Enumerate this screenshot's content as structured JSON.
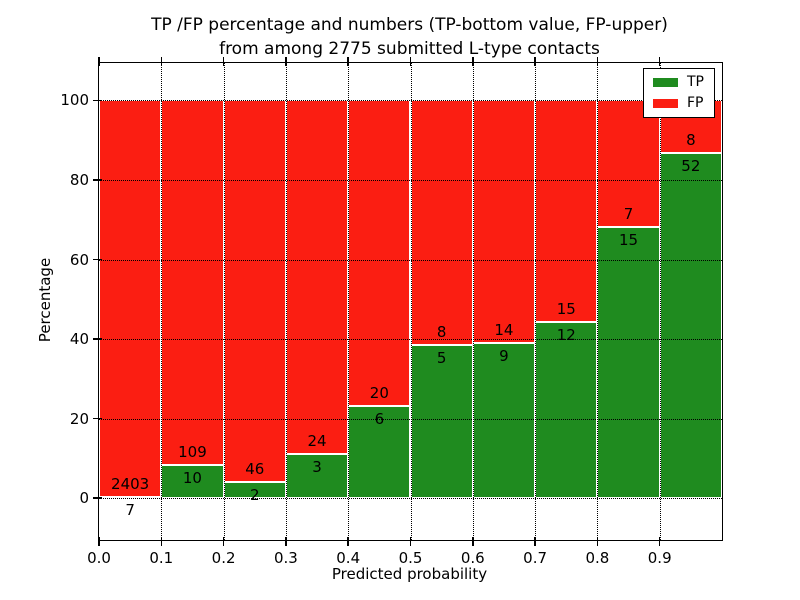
{
  "figure": {
    "title_line1": "TP /FP percentage and numbers (TP-bottom value, FP-upper)",
    "title_line2": "from among 2775 submitted L-type contacts",
    "background": "#ffffff"
  },
  "chart_data": {
    "type": "bar",
    "stacked": true,
    "title": "TP /FP percentage and numbers (TP-bottom value, FP-upper) from among 2775 submitted L-type contacts",
    "xlabel": "Predicted probability",
    "ylabel": "Percentage",
    "total_contacts": 2775,
    "xlim": [
      0.0,
      1.0
    ],
    "ylim": [
      -10.5,
      109.4
    ],
    "grid": "dotted",
    "x_tick_values": [
      0.0,
      0.1,
      0.2,
      0.3,
      0.4,
      0.5,
      0.6,
      0.7,
      0.8,
      0.9
    ],
    "x_tick_labels": [
      "0.0",
      "0.1",
      "0.2",
      "0.3",
      "0.4",
      "0.5",
      "0.6",
      "0.7",
      "0.8",
      "0.9"
    ],
    "y_tick_values": [
      0,
      20,
      40,
      60,
      80,
      100
    ],
    "y_tick_labels": [
      "0",
      "20",
      "40",
      "60",
      "80",
      "100"
    ],
    "legend": {
      "position": "upper right",
      "entries": [
        {
          "label": "TP",
          "color": "#1f8b1f"
        },
        {
          "label": "FP",
          "color": "#fb1e12"
        }
      ]
    },
    "series": [
      {
        "name": "TP",
        "color": "#1f8b1f",
        "counts": [
          7,
          10,
          2,
          3,
          6,
          5,
          9,
          12,
          15,
          52
        ]
      },
      {
        "name": "FP",
        "color": "#fb1e12",
        "counts": [
          2403,
          109,
          46,
          24,
          20,
          8,
          14,
          15,
          7,
          8
        ]
      }
    ],
    "bins": [
      {
        "x_start": 0.0,
        "x_end": 0.1,
        "tp": 7,
        "fp": 2403,
        "tp_pct": 0.3,
        "fp_pct": 99.7
      },
      {
        "x_start": 0.1,
        "x_end": 0.2,
        "tp": 10,
        "fp": 109,
        "tp_pct": 8.4,
        "fp_pct": 91.6
      },
      {
        "x_start": 0.2,
        "x_end": 0.3,
        "tp": 2,
        "fp": 46,
        "tp_pct": 4.2,
        "fp_pct": 95.8
      },
      {
        "x_start": 0.3,
        "x_end": 0.4,
        "tp": 3,
        "fp": 24,
        "tp_pct": 11.1,
        "fp_pct": 88.9
      },
      {
        "x_start": 0.4,
        "x_end": 0.5,
        "tp": 6,
        "fp": 20,
        "tp_pct": 23.1,
        "fp_pct": 76.9
      },
      {
        "x_start": 0.5,
        "x_end": 0.6,
        "tp": 5,
        "fp": 8,
        "tp_pct": 38.5,
        "fp_pct": 61.5
      },
      {
        "x_start": 0.6,
        "x_end": 0.7,
        "tp": 9,
        "fp": 14,
        "tp_pct": 39.1,
        "fp_pct": 60.9
      },
      {
        "x_start": 0.7,
        "x_end": 0.8,
        "tp": 12,
        "fp": 15,
        "tp_pct": 44.4,
        "fp_pct": 55.6
      },
      {
        "x_start": 0.8,
        "x_end": 0.9,
        "tp": 15,
        "fp": 7,
        "tp_pct": 68.2,
        "fp_pct": 31.8
      },
      {
        "x_start": 0.9,
        "x_end": 1.0,
        "tp": 52,
        "fp": 8,
        "tp_pct": 86.7,
        "fp_pct": 13.3
      }
    ]
  }
}
